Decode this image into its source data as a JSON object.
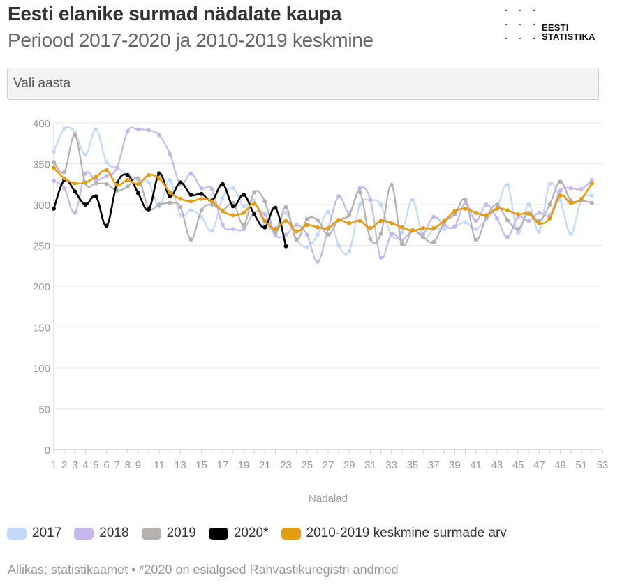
{
  "title": "Eesti elanike surmad nädalate kaupa",
  "subtitle": "Periood 2017-2020 ja 2010-2019 keskmine",
  "logo": {
    "line1": "EESTI",
    "line2": "STATISTIKA"
  },
  "select": {
    "label": "Vali aasta"
  },
  "source": {
    "prefix": "Allikas:",
    "link": "statistikaamet",
    "note": "• *2020 on esialgsed Rahvastikuregistri andmed"
  },
  "colors": {
    "2017": "#c3d9f9",
    "2018": "#c6b8ec",
    "2019": "#b5b1ae",
    "2020": "#000000",
    "avg": "#e39c16",
    "grid": "#e8e8e8",
    "axis_text": "#999999"
  },
  "chart_data": {
    "type": "line",
    "xlabel": "Nädalad",
    "ylabel": "",
    "xlim": [
      1,
      53
    ],
    "ylim": [
      0,
      400
    ],
    "yticks": [
      0,
      50,
      100,
      150,
      200,
      250,
      300,
      350,
      400
    ],
    "xticks": [
      1,
      2,
      3,
      4,
      5,
      6,
      7,
      8,
      9,
      11,
      13,
      15,
      17,
      19,
      21,
      23,
      25,
      27,
      29,
      31,
      33,
      35,
      37,
      39,
      41,
      43,
      45,
      47,
      49,
      51,
      53
    ],
    "grid": true,
    "legend_position": "bottom-left",
    "series": [
      {
        "name": "2017",
        "color": "#c3d9f9",
        "width": 2.2,
        "values": [
          365,
          393,
          388,
          361,
          392,
          352,
          345,
          337,
          330,
          327,
          298,
          330,
          287,
          293,
          285,
          268,
          308,
          320,
          298,
          305,
          275,
          271,
          290,
          258,
          248,
          263,
          291,
          250,
          243,
          300,
          305,
          300,
          262,
          266,
          306,
          260,
          270,
          270,
          273,
          278,
          270,
          282,
          296,
          324,
          265,
          300,
          267,
          325,
          305,
          264,
          306,
          311
        ]
      },
      {
        "name": "2018",
        "color": "#c6b8ec",
        "width": 2.2,
        "values": [
          329,
          320,
          290,
          338,
          330,
          335,
          345,
          390,
          392,
          391,
          385,
          362,
          325,
          338,
          320,
          319,
          275,
          270,
          270,
          290,
          288,
          262,
          263,
          275,
          263,
          230,
          270,
          310,
          290,
          320,
          306,
          235,
          264,
          256,
          269,
          264,
          285,
          275,
          273,
          302,
          280,
          300,
          283,
          260,
          285,
          280,
          290,
          287,
          317,
          320,
          319,
          330
        ]
      },
      {
        "name": "2019",
        "color": "#b5b1ae",
        "width": 2.2,
        "values": [
          352,
          340,
          385,
          326,
          326,
          325,
          317,
          322,
          332,
          296,
          300,
          302,
          297,
          257,
          293,
          300,
          293,
          302,
          275,
          315,
          304,
          265,
          297,
          257,
          282,
          281,
          263,
          281,
          287,
          315,
          258,
          264,
          324,
          252,
          268,
          260,
          254,
          278,
          288,
          306,
          257,
          285,
          300,
          281,
          270,
          290,
          280,
          300,
          328,
          305,
          305,
          302
        ]
      },
      {
        "name": "2020*",
        "color": "#000000",
        "width": 2.6,
        "values": [
          295,
          330,
          316,
          300,
          310,
          274,
          326,
          336,
          314,
          294,
          338,
          310,
          327,
          312,
          313,
          305,
          325,
          298,
          312,
          288,
          272,
          296,
          249
        ]
      },
      {
        "name": "2010-2019 keskmine surmade arv",
        "color": "#e39c16",
        "width": 2.6,
        "values": [
          345,
          332,
          326,
          327,
          334,
          342,
          324,
          330,
          325,
          336,
          332,
          315,
          307,
          304,
          307,
          304,
          292,
          287,
          290,
          301,
          280,
          270,
          280,
          267,
          275,
          272,
          271,
          281,
          277,
          280,
          271,
          280,
          277,
          272,
          268,
          271,
          271,
          280,
          292,
          295,
          290,
          287,
          295,
          293,
          288,
          289,
          277,
          283,
          311,
          302,
          307,
          326
        ]
      }
    ]
  }
}
